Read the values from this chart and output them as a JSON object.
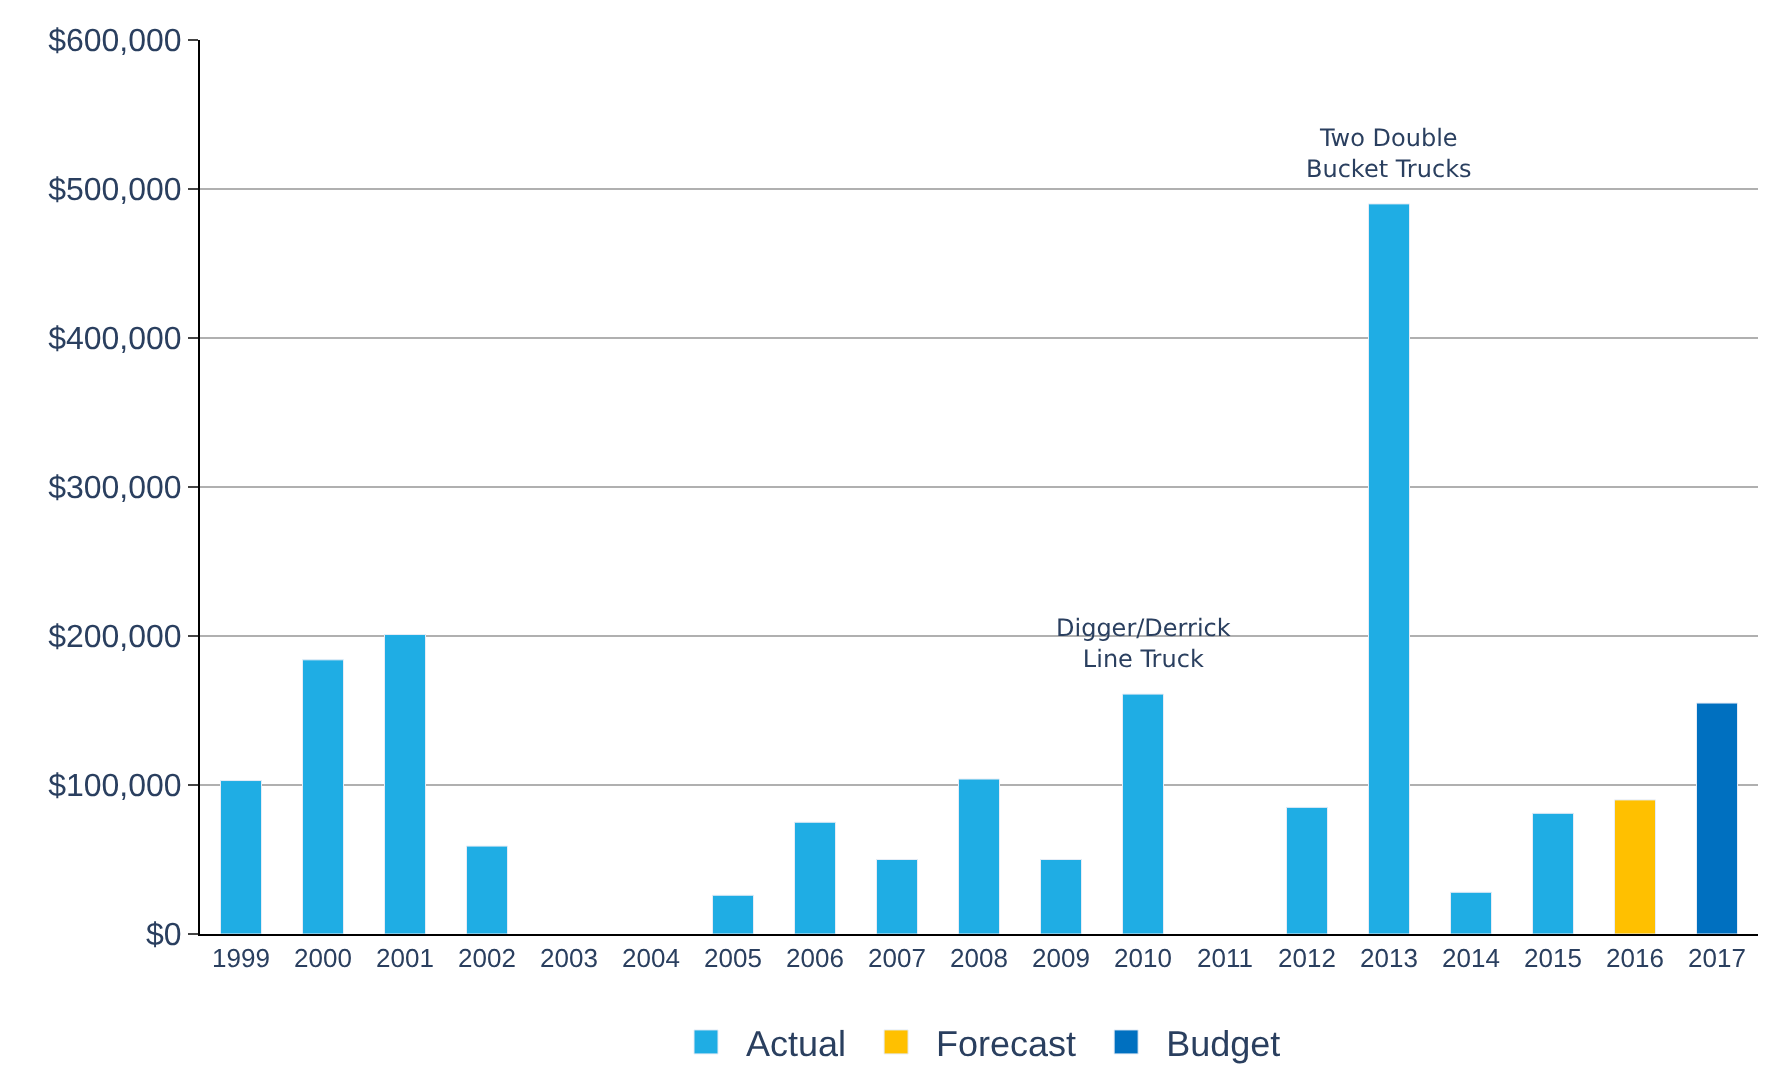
{
  "chart_data": {
    "type": "bar",
    "categories": [
      "1999",
      "2000",
      "2001",
      "2002",
      "2003",
      "2004",
      "2005",
      "2006",
      "2007",
      "2008",
      "2009",
      "2010",
      "2011",
      "2012",
      "2013",
      "2014",
      "2015",
      "2016",
      "2017"
    ],
    "series": [
      {
        "name": "Actual",
        "color": "#1fade4",
        "values": [
          103000,
          184000,
          201000,
          59000,
          null,
          null,
          26000,
          75000,
          50000,
          104000,
          50000,
          161000,
          null,
          85000,
          490000,
          28000,
          81000,
          null,
          null
        ]
      },
      {
        "name": "Forecast",
        "color": "#ffc000",
        "values": [
          null,
          null,
          null,
          null,
          null,
          null,
          null,
          null,
          null,
          null,
          null,
          null,
          null,
          null,
          null,
          null,
          null,
          90000,
          null
        ]
      },
      {
        "name": "Budget",
        "color": "#0070c0",
        "values": [
          null,
          null,
          null,
          null,
          null,
          null,
          null,
          null,
          null,
          null,
          null,
          null,
          null,
          null,
          null,
          null,
          null,
          null,
          155000
        ]
      }
    ],
    "ylim": [
      0,
      600000
    ],
    "yticks": [
      {
        "value": 0,
        "label": "$0"
      },
      {
        "value": 100000,
        "label": "$100,000"
      },
      {
        "value": 200000,
        "label": "$200,000"
      },
      {
        "value": 300000,
        "label": "$300,000"
      },
      {
        "value": 400000,
        "label": "$400,000"
      },
      {
        "value": 500000,
        "label": "$500,000"
      },
      {
        "value": 600000,
        "label": "$600,000"
      }
    ],
    "annotations": [
      {
        "text": "Digger/Derrick\nLine Truck",
        "x": "2010",
        "y": 161000
      },
      {
        "text": "Two Double\nBucket Trucks",
        "x": "2013",
        "y": 490000
      }
    ],
    "grid": "y",
    "legend": "bottom"
  }
}
